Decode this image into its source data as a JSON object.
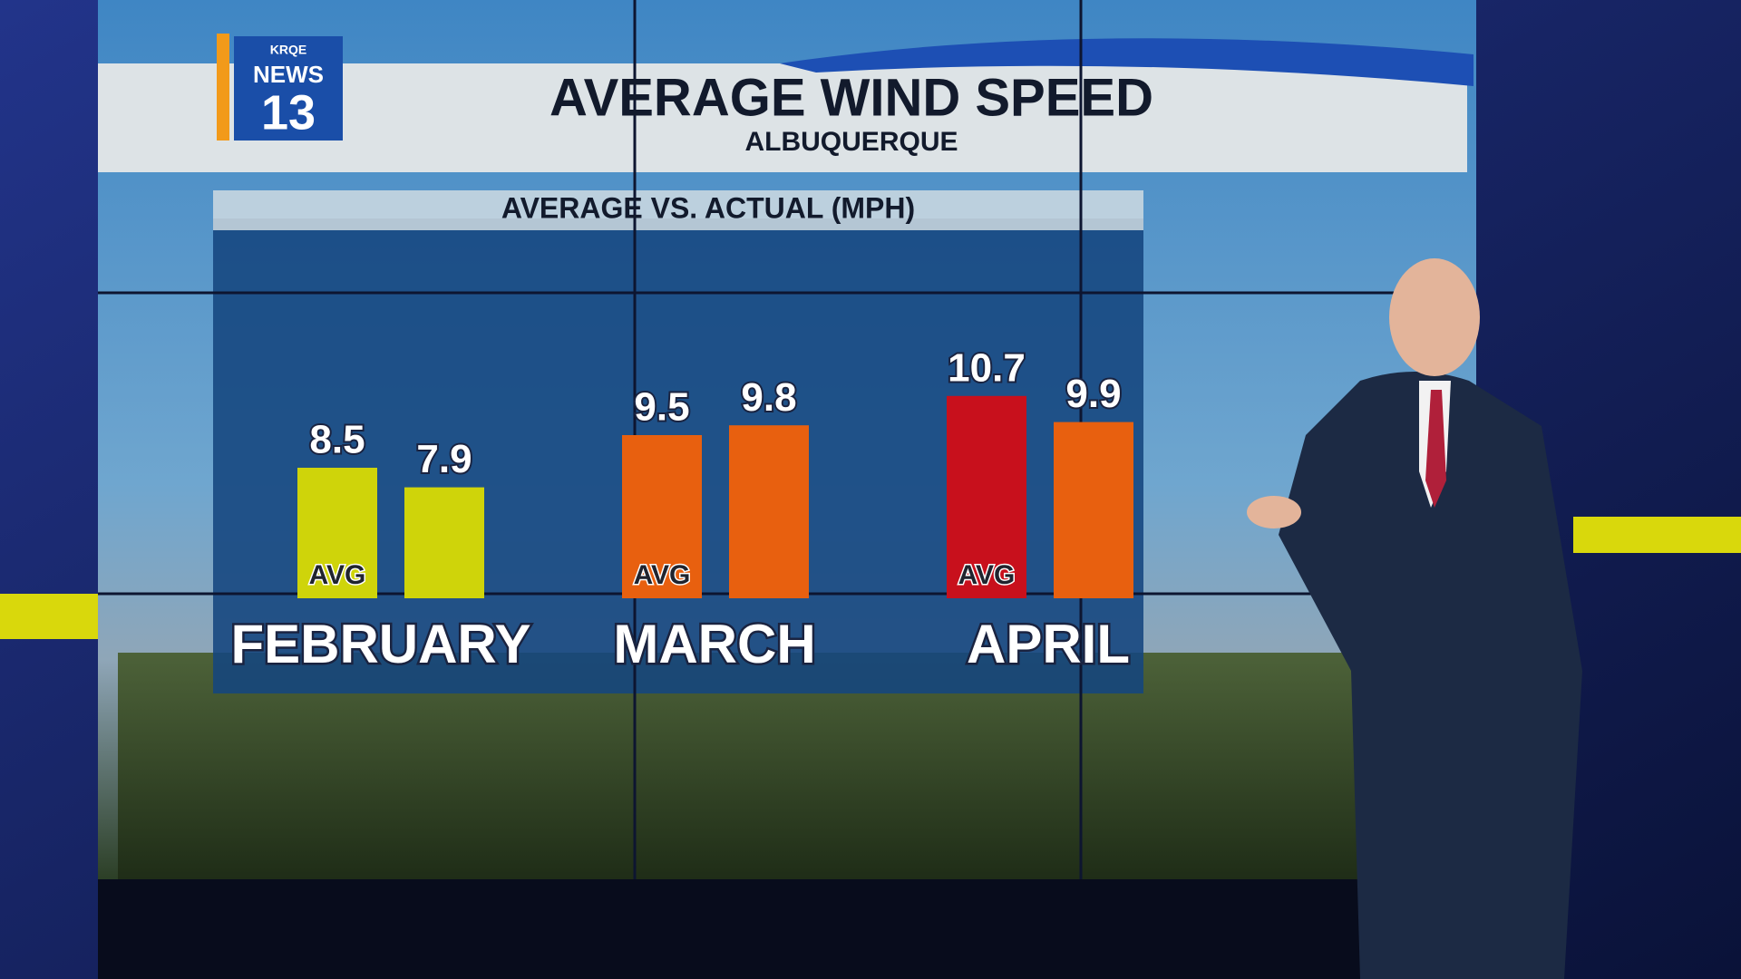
{
  "logo": {
    "top": "KRQE",
    "middle": "NEWS",
    "number": "13"
  },
  "chart_data": {
    "type": "bar",
    "title": "AVERAGE WIND SPEED",
    "subtitle": "ALBUQUERQUE",
    "chart_subtitle": "AVERAGE VS. ACTUAL (MPH)",
    "categories": [
      "FEBRUARY",
      "MARCH",
      "APRIL"
    ],
    "series": [
      {
        "name": "AVG",
        "colors": [
          "#cfd40a",
          "#e8600f",
          "#c8101c"
        ],
        "values": [
          8.5,
          9.5,
          10.7
        ]
      },
      {
        "colors": [
          "#cfd40a",
          "#e8600f",
          "#e8600f"
        ],
        "values": [
          7.9,
          9.8,
          9.9
        ]
      }
    ],
    "ylim": [
      4.5,
      11
    ]
  }
}
